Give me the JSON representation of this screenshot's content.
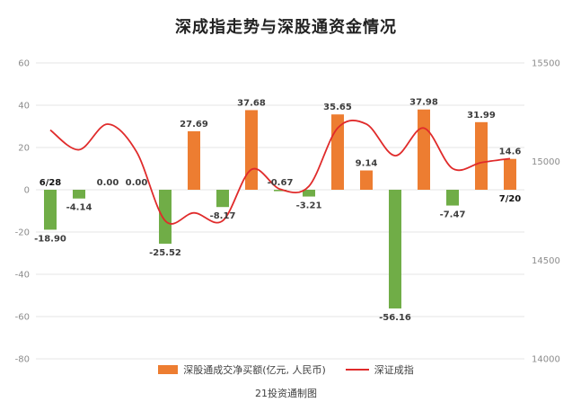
{
  "title": "深成指走势与深股通资金情况",
  "footer": "21投资通制图",
  "legend": [
    {
      "label": "深股通成交净买额(亿元, 人民币)",
      "type": "bar",
      "color": "#ED7D31"
    },
    {
      "label": "深证成指",
      "type": "line",
      "color": "#E02B2B"
    }
  ],
  "chart_data": {
    "type": "bar",
    "combo": "bar+line",
    "title": "深成指走势与深股通资金情况",
    "x_first_label": "6/28",
    "x_last_label": "7/20",
    "left_axis": {
      "min": -80,
      "max": 60,
      "ticks": [
        "60",
        "40",
        "20",
        "0",
        "-20",
        "-40",
        "-60",
        "-80"
      ]
    },
    "right_axis": {
      "min": 14000,
      "max": 15500,
      "ticks": [
        "15500",
        "15000",
        "14500",
        "14000"
      ]
    },
    "grid": true,
    "legend_position": "bottom",
    "bar_series": {
      "name": "深股通成交净买额(亿元, 人民币)",
      "values": [
        -18.9,
        -4.14,
        0,
        0,
        -25.52,
        27.69,
        -8.17,
        37.68,
        -0.67,
        -3.21,
        35.65,
        9.14,
        -56.16,
        37.98,
        -7.47,
        31.99,
        14.6
      ],
      "labels": [
        "-18.90",
        "-4.14",
        "0.00",
        "0.00",
        "-25.52",
        "27.69",
        "-8.17",
        "37.68",
        "-0.67",
        "-3.21",
        "35.65",
        "9.14",
        "-56.16",
        "37.98",
        "-7.47",
        "31.99",
        "14.6"
      ],
      "positive_color": "#ED7D31",
      "negative_color": "#70AD47",
      "label_above_indices": [
        8
      ]
    },
    "line_series": {
      "name": "深证成指",
      "color": "#E02B2B",
      "values": [
        15160,
        15060,
        15190,
        15050,
        14700,
        14740,
        14700,
        14960,
        14860,
        14875,
        15170,
        15190,
        15030,
        15170,
        14965,
        14995,
        15015
      ]
    }
  }
}
